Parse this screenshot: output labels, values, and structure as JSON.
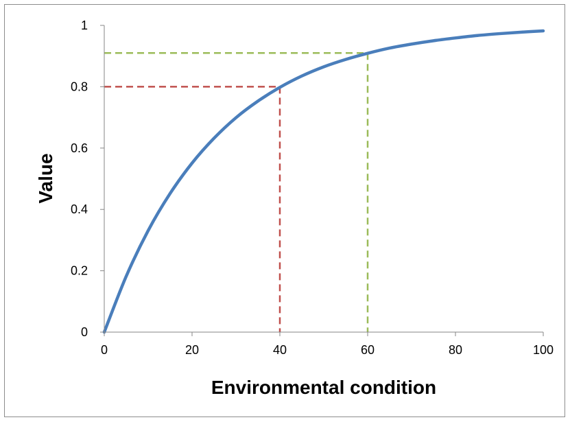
{
  "chart_data": {
    "type": "line",
    "xlabel": "Environmental condition",
    "ylabel": "Value",
    "xlim": [
      0,
      100
    ],
    "ylim": [
      0,
      1
    ],
    "x_ticks": [
      0,
      20,
      40,
      60,
      80,
      100
    ],
    "y_ticks": [
      0,
      0.2,
      0.4,
      0.6,
      0.8,
      1
    ],
    "x_tick_labels": [
      "0",
      "20",
      "40",
      "60",
      "80",
      "100"
    ],
    "y_tick_labels": [
      "0",
      "0.2",
      "0.4",
      "0.6",
      "0.8",
      "1"
    ],
    "grid": false,
    "series": [
      {
        "color": "#4a7ebb",
        "x": [
          0,
          5,
          10,
          15,
          20,
          25,
          30,
          35,
          40,
          45,
          50,
          55,
          60,
          65,
          70,
          75,
          80,
          85,
          90,
          95,
          100
        ],
        "y": [
          0,
          0.182,
          0.331,
          0.452,
          0.551,
          0.632,
          0.699,
          0.753,
          0.798,
          0.835,
          0.865,
          0.889,
          0.909,
          0.926,
          0.939,
          0.95,
          0.959,
          0.967,
          0.973,
          0.978,
          0.982
        ]
      }
    ],
    "reference_lines": [
      {
        "color": "#c0504d",
        "x": 40,
        "y": 0.8
      },
      {
        "color": "#9bbb59",
        "x": 60,
        "y": 0.91
      }
    ]
  }
}
